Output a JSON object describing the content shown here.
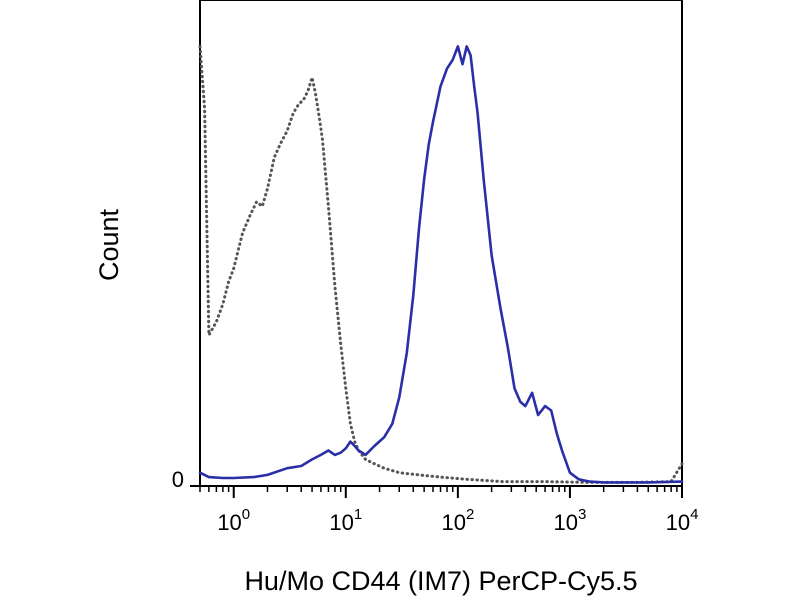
{
  "chart_data": {
    "type": "line",
    "title": "",
    "xlabel": "Hu/Mo CD44 (IM7) PerCP-Cy5.5",
    "ylabel": "Count",
    "x_scale": "log",
    "xlim": [
      0.5,
      10000
    ],
    "ylim": [
      0,
      100
    ],
    "x_ticks": [
      {
        "value": 1,
        "base": "10",
        "exp": "0"
      },
      {
        "value": 10,
        "base": "10",
        "exp": "1"
      },
      {
        "value": 100,
        "base": "10",
        "exp": "2"
      },
      {
        "value": 1000,
        "base": "10",
        "exp": "3"
      },
      {
        "value": 10000,
        "base": "10",
        "exp": "4"
      }
    ],
    "y_ticks": [
      {
        "value": 0,
        "label": "0"
      }
    ],
    "grid": false,
    "legend": "none",
    "series": [
      {
        "style": "dotted",
        "color": "#555555",
        "x": [
          0.5,
          0.55,
          0.6,
          0.7,
          0.8,
          0.9,
          1.0,
          1.2,
          1.4,
          1.6,
          1.8,
          2.0,
          2.3,
          2.6,
          3.0,
          3.4,
          3.8,
          4.2,
          4.6,
          5.0,
          5.4,
          5.8,
          6.2,
          7.0,
          8.0,
          9.0,
          10,
          11,
          12,
          13,
          15,
          18,
          22,
          30,
          45,
          70,
          120,
          250,
          600,
          1500,
          4000,
          8000,
          10000
        ],
        "y": [
          99,
          85,
          34,
          37,
          41,
          46,
          49,
          57,
          61,
          64,
          63,
          67,
          74,
          77,
          80,
          84,
          86,
          87,
          89,
          92,
          88,
          83,
          78,
          63,
          45,
          32,
          22,
          14,
          10,
          8,
          6,
          5,
          4,
          3,
          2.5,
          2,
          1.5,
          1,
          1,
          0.8,
          0.8,
          1,
          5
        ]
      },
      {
        "style": "solid",
        "color": "#2a2fa8",
        "x": [
          0.5,
          0.6,
          0.8,
          1.0,
          1.5,
          2.0,
          3.0,
          4.0,
          5.0,
          6.0,
          7.0,
          8.0,
          9.0,
          10,
          11,
          12,
          13,
          15,
          18,
          22,
          26,
          30,
          35,
          40,
          45,
          50,
          55,
          60,
          70,
          80,
          90,
          100,
          110,
          120,
          130,
          140,
          150,
          170,
          200,
          240,
          280,
          320,
          360,
          400,
          460,
          520,
          600,
          680,
          760,
          850,
          1000,
          1200,
          1500,
          2000,
          3000,
          5000,
          10000
        ],
        "y": [
          3,
          2,
          1.8,
          1.8,
          2,
          2.5,
          4,
          4.5,
          6,
          7,
          8,
          7,
          7.5,
          8.5,
          10,
          9,
          8,
          7,
          9,
          11,
          14,
          20,
          30,
          43,
          58,
          69,
          77,
          82,
          90,
          94,
          96,
          99,
          95,
          99,
          97,
          90,
          84,
          69,
          52,
          40,
          31,
          22,
          19,
          18,
          21,
          16,
          18,
          17,
          12,
          8,
          3,
          1.5,
          1,
          0.8,
          0.8,
          0.8,
          1
        ]
      }
    ]
  }
}
